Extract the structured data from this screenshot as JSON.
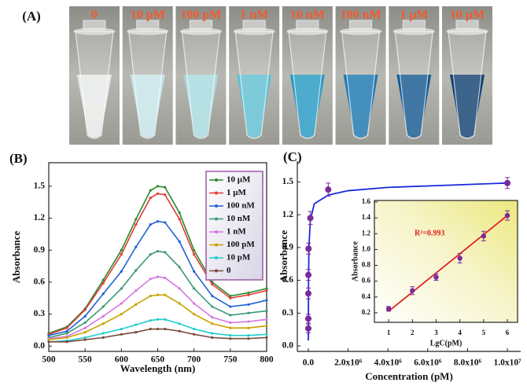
{
  "panel_a": {
    "panel": "(A)",
    "tubes": [
      {
        "label": "0",
        "color": "#e9ecea"
      },
      {
        "label": "10 pM",
        "color": "#c6e6ea"
      },
      {
        "label": "100 pM",
        "color": "#a8dce0"
      },
      {
        "label": "1 nM",
        "color": "#5cc0d4"
      },
      {
        "label": "10 nM",
        "color": "#1f98c4"
      },
      {
        "label": "100 nM",
        "color": "#1574b0"
      },
      {
        "label": "1 μM",
        "color": "#0e5590"
      },
      {
        "label": "10 μM",
        "color": "#0b3c6e"
      }
    ]
  },
  "chart_data": [
    {
      "type": "line",
      "panel": "(B)",
      "x_label": "Wavelength (nm)",
      "y_label": "Absorbance",
      "legend": "upper right",
      "grid": false,
      "x": [
        500,
        525,
        550,
        575,
        600,
        620,
        640,
        650,
        660,
        680,
        700,
        725,
        750,
        775,
        800
      ],
      "xlim": [
        500,
        800
      ],
      "xticks": [
        500,
        550,
        600,
        650,
        700,
        750,
        800
      ],
      "ylim": [
        -0.05,
        1.72
      ],
      "yticks": [
        {
          "value": 0,
          "label": "0.0"
        },
        0.3,
        0.6,
        0.9,
        1.2,
        1.5
      ],
      "series": [
        {
          "name": "10 μM",
          "color": "#2a8a2a",
          "values": [
            0.12,
            0.18,
            0.35,
            0.62,
            0.9,
            1.19,
            1.46,
            1.5,
            1.49,
            1.25,
            0.9,
            0.6,
            0.47,
            0.5,
            0.54
          ]
        },
        {
          "name": "1 μM",
          "color": "#e23a3a",
          "values": [
            0.11,
            0.17,
            0.34,
            0.59,
            0.86,
            1.14,
            1.39,
            1.43,
            1.42,
            1.19,
            0.86,
            0.58,
            0.45,
            0.48,
            0.52
          ]
        },
        {
          "name": "100 nM",
          "color": "#2262d2",
          "values": [
            0.1,
            0.14,
            0.28,
            0.49,
            0.7,
            0.93,
            1.14,
            1.17,
            1.16,
            0.98,
            0.7,
            0.47,
            0.37,
            0.39,
            0.43
          ]
        },
        {
          "name": "10 nM",
          "color": "#3a9a70",
          "values": [
            0.08,
            0.12,
            0.22,
            0.37,
            0.54,
            0.71,
            0.86,
            0.89,
            0.88,
            0.74,
            0.54,
            0.37,
            0.29,
            0.31,
            0.33
          ]
        },
        {
          "name": "1 nM",
          "color": "#d676e6",
          "values": [
            0.07,
            0.09,
            0.17,
            0.28,
            0.4,
            0.52,
            0.63,
            0.65,
            0.64,
            0.54,
            0.4,
            0.27,
            0.22,
            0.23,
            0.25
          ]
        },
        {
          "name": "100 pM",
          "color": "#c9a200",
          "values": [
            0.06,
            0.08,
            0.13,
            0.21,
            0.3,
            0.39,
            0.47,
            0.48,
            0.48,
            0.4,
            0.3,
            0.21,
            0.17,
            0.17,
            0.19
          ]
        },
        {
          "name": "10 pM",
          "color": "#22cccc",
          "values": [
            0.04,
            0.05,
            0.08,
            0.12,
            0.16,
            0.2,
            0.24,
            0.25,
            0.25,
            0.21,
            0.16,
            0.12,
            0.1,
            0.1,
            0.11
          ]
        },
        {
          "name": "0",
          "color": "#7a4a3a",
          "values": [
            0.04,
            0.04,
            0.06,
            0.08,
            0.11,
            0.13,
            0.16,
            0.16,
            0.16,
            0.14,
            0.11,
            0.08,
            0.07,
            0.07,
            0.08
          ]
        }
      ]
    },
    {
      "type": "scatter",
      "panel": "(C)",
      "x_label": "Concentration (pM)",
      "y_label": "Absorbance",
      "color": "#7b2a9a",
      "fit_color": "#1a2adc",
      "xlim": [
        -553000,
        10670000
      ],
      "xticks": [
        {
          "value": 0,
          "label": "0.0"
        },
        {
          "value": 2000000,
          "label": "2.0x10⁶"
        },
        {
          "value": 4000000,
          "label": "4.0x10⁶"
        },
        {
          "value": 6000000,
          "label": "6.0x10⁶"
        },
        {
          "value": 8000000,
          "label": "8.0x10⁶"
        },
        {
          "value": 10000000,
          "label": "1.0x10⁷"
        }
      ],
      "ylim": [
        -0.05,
        1.69
      ],
      "yticks": [
        {
          "value": 0,
          "label": "0.0"
        },
        0.3,
        0.6,
        0.9,
        1.2,
        1.5
      ],
      "x": [
        0,
        10,
        100,
        1000,
        10000,
        100000,
        1000000,
        10000000
      ],
      "values": [
        0.16,
        0.25,
        0.48,
        0.65,
        0.89,
        1.17,
        1.43,
        1.49
      ],
      "errors": [
        0.04,
        0.04,
        0.05,
        0.05,
        0.05,
        0.06,
        0.06,
        0.05
      ],
      "fit": {
        "x": [
          0,
          10000,
          30000,
          100000,
          300000,
          1000000,
          2000000,
          4000000,
          7000000,
          10000000
        ],
        "y": [
          0.05,
          0.6,
          0.9,
          1.15,
          1.3,
          1.38,
          1.42,
          1.45,
          1.47,
          1.49
        ]
      }
    },
    {
      "type": "scatter",
      "x_label": "LgC(pM)",
      "y_label": "Absorbance",
      "annotation": "R²=0.993",
      "color": "#7b2a9a",
      "fit_color": "#e02020",
      "xlim": [
        0.4,
        6.43
      ],
      "xticks": [
        1,
        2,
        3,
        4,
        5,
        6
      ],
      "ylim": [
        0.08,
        1.62
      ],
      "yticks": [
        0.2,
        0.4,
        0.6,
        0.8,
        {
          "value": 1,
          "label": "1.0"
        },
        1.2,
        1.4,
        1.6
      ],
      "x": [
        1,
        2,
        3,
        4,
        5,
        6
      ],
      "values": [
        0.25,
        0.48,
        0.65,
        0.89,
        1.17,
        1.43
      ],
      "errors": [
        0.03,
        0.05,
        0.04,
        0.06,
        0.06,
        0.06
      ],
      "fit": {
        "x": [
          1,
          6
        ],
        "y": [
          0.22,
          1.43
        ]
      }
    }
  ]
}
